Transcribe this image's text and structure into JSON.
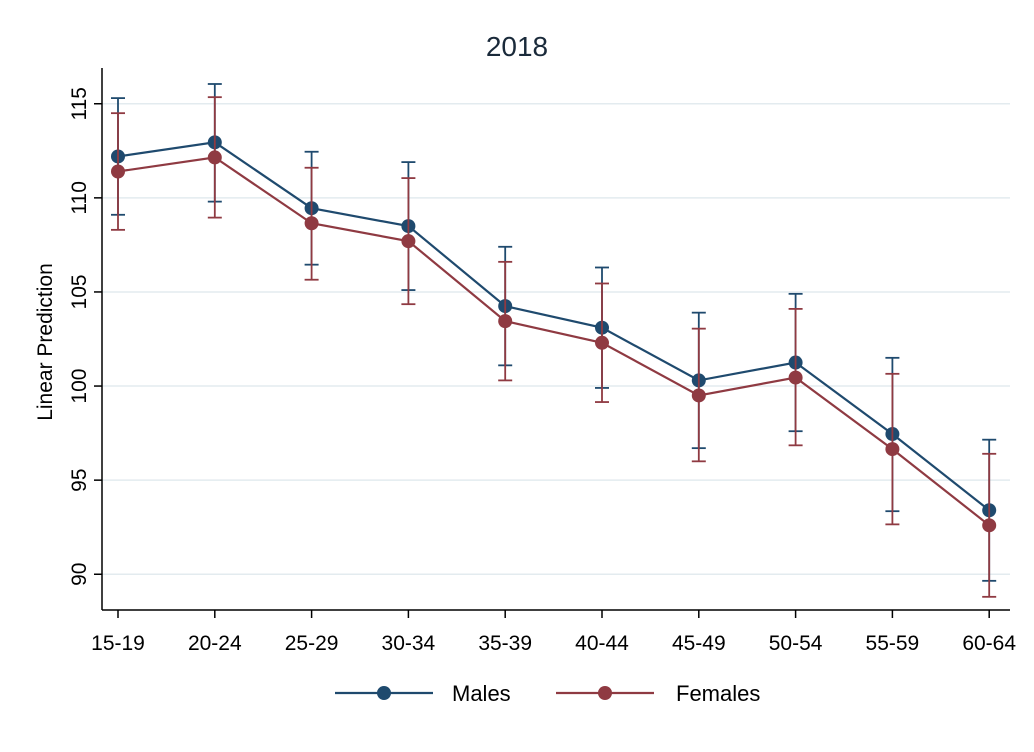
{
  "chart_data": {
    "type": "line",
    "title": "2018",
    "xlabel": "",
    "ylabel": "Linear Prediction",
    "categories": [
      "15-19",
      "20-24",
      "25-29",
      "30-34",
      "35-39",
      "40-44",
      "45-49",
      "50-54",
      "55-59",
      "60-64"
    ],
    "yticks": [
      "90",
      "95",
      "100",
      "105",
      "110",
      "115"
    ],
    "ylim": [
      88.1,
      116.9
    ],
    "grid": true,
    "legend_position": "bottom",
    "error_bars": true,
    "series": [
      {
        "name": "Males",
        "color": "#1f4a6e",
        "values": [
          112.2,
          112.95,
          109.45,
          108.5,
          104.25,
          103.1,
          100.3,
          101.25,
          97.45,
          93.4
        ],
        "ci_lower": [
          109.1,
          109.8,
          106.45,
          105.1,
          101.1,
          99.9,
          96.7,
          97.6,
          93.35,
          89.65
        ],
        "ci_upper": [
          115.3,
          116.05,
          112.45,
          111.9,
          107.4,
          106.3,
          103.9,
          104.9,
          101.5,
          97.15
        ]
      },
      {
        "name": "Females",
        "color": "#8f3a42",
        "values": [
          111.4,
          112.15,
          108.65,
          107.7,
          103.45,
          102.3,
          99.5,
          100.45,
          96.65,
          92.6
        ],
        "ci_lower": [
          108.3,
          108.95,
          105.65,
          104.35,
          100.3,
          99.15,
          96.0,
          96.85,
          92.65,
          88.8
        ],
        "ci_upper": [
          114.5,
          115.35,
          111.6,
          111.05,
          106.6,
          105.45,
          103.05,
          104.1,
          100.65,
          96.4
        ]
      }
    ]
  }
}
